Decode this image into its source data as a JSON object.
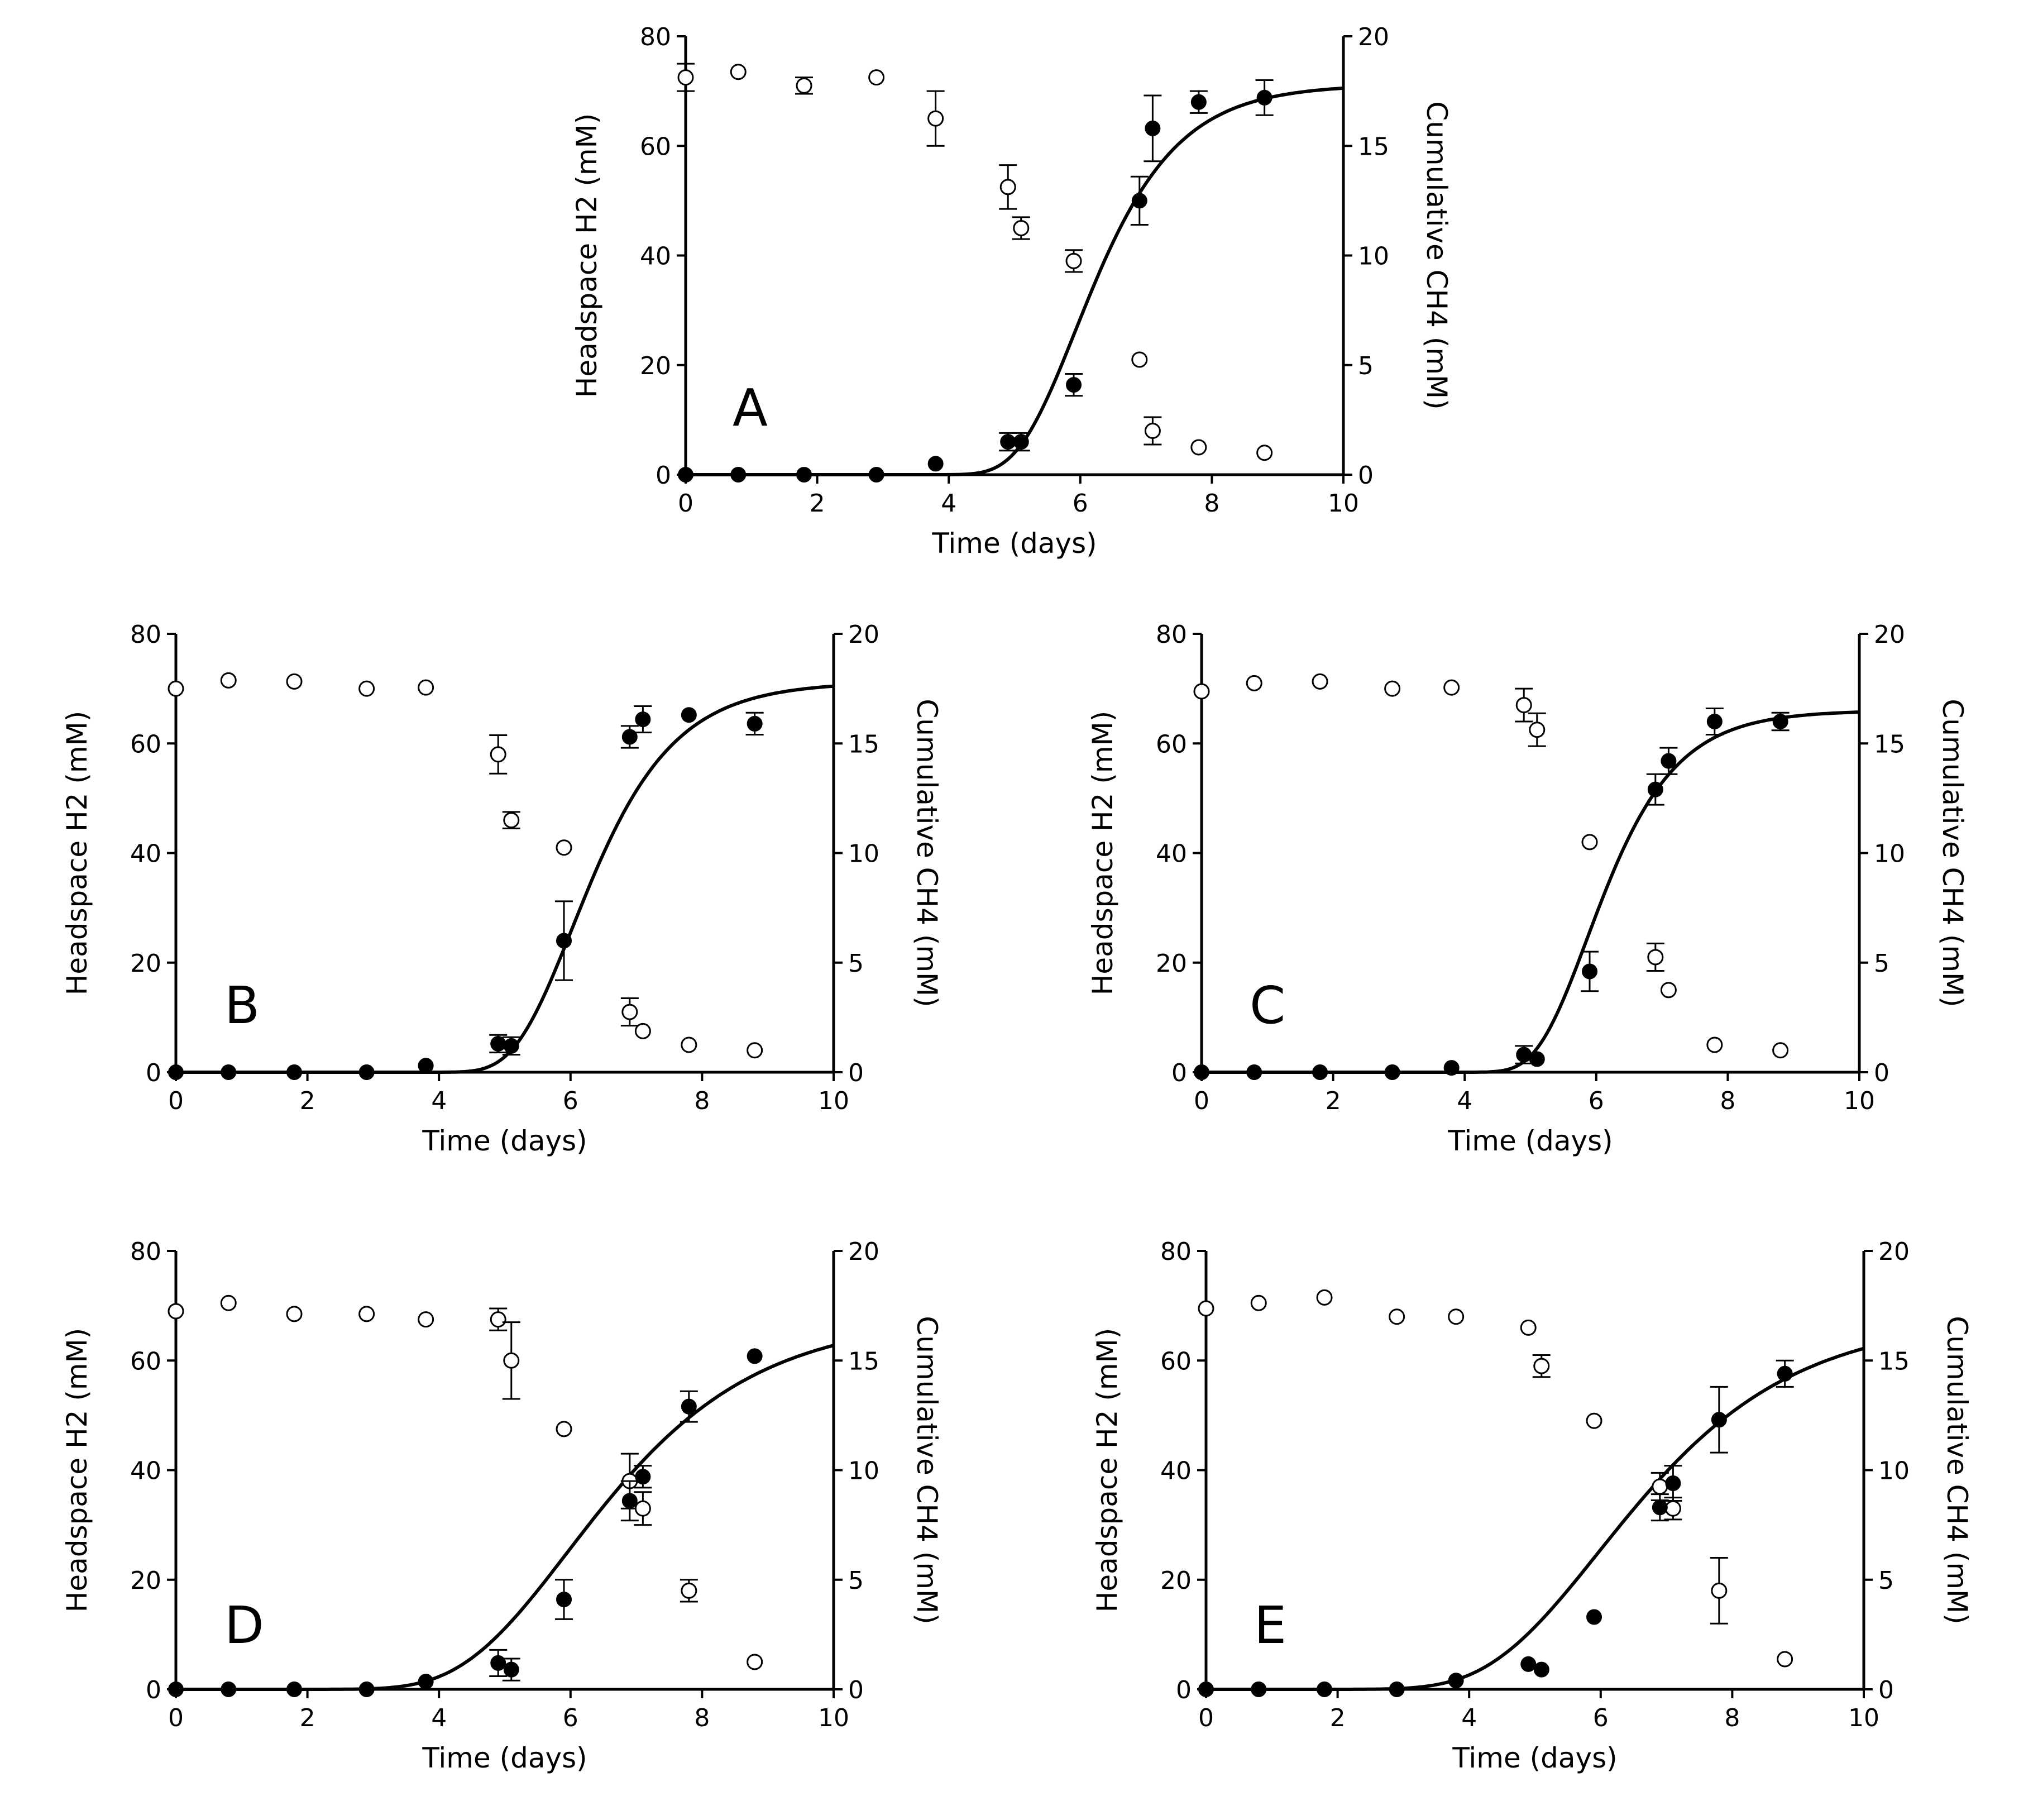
{
  "chart_data": [
    {
      "type": "scatter",
      "panel": "A",
      "xlabel": "Time (days)",
      "ylabel_left": "Headspace H2 (mM)",
      "ylabel_right": "Cumulative CH4 (mM)",
      "x_ticks": [
        "0",
        "2",
        "4",
        "6",
        "8",
        "10"
      ],
      "y_left_ticks": [
        "0",
        "20",
        "40",
        "60",
        "80"
      ],
      "y_right_ticks": [
        "0",
        "5",
        "10",
        "15",
        "20"
      ],
      "xlim": [
        0,
        10
      ],
      "ylim_left": [
        0,
        80
      ],
      "ylim_right": [
        0,
        20
      ],
      "series": [
        {
          "name": "Headspace H2",
          "marker": "open-circle",
          "axis": "left",
          "x": [
            0,
            0.8,
            1.8,
            2.9,
            3.8,
            4.9,
            5.1,
            5.9,
            6.9,
            7.1,
            7.8,
            8.8
          ],
          "y": [
            72.5,
            73.5,
            71,
            72.5,
            65,
            52.5,
            45,
            39,
            21,
            8,
            5,
            4
          ],
          "err": [
            2.5,
            0,
            1.5,
            0,
            5,
            4,
            2,
            2,
            0,
            2.5,
            0,
            0
          ]
        },
        {
          "name": "Cumulative CH4",
          "marker": "filled-circle",
          "axis": "right",
          "x": [
            0,
            0.8,
            1.8,
            2.9,
            3.8,
            4.9,
            5.1,
            5.9,
            6.9,
            7.1,
            7.8,
            8.8
          ],
          "y": [
            0,
            0,
            0,
            0,
            0.5,
            1.5,
            1.5,
            4.1,
            12.5,
            15.8,
            17,
            17.2
          ],
          "err": [
            0,
            0,
            0,
            0,
            0,
            0.4,
            0.4,
            0.5,
            1.1,
            1.5,
            0.5,
            0.8
          ]
        }
      ],
      "fit": {
        "name": "Model fit (CH4)",
        "axis": "right",
        "A": 17.8,
        "mu": 7.5,
        "lambda": 5.05
      }
    },
    {
      "type": "scatter",
      "panel": "B",
      "xlabel": "Time (days)",
      "ylabel_left": "Headspace H2 (mM)",
      "ylabel_right": "Cumulative CH4 (mM)",
      "x_ticks": [
        "0",
        "2",
        "4",
        "6",
        "8",
        "10"
      ],
      "y_left_ticks": [
        "0",
        "20",
        "40",
        "60",
        "80"
      ],
      "y_right_ticks": [
        "0",
        "5",
        "10",
        "15",
        "20"
      ],
      "xlim": [
        0,
        10
      ],
      "ylim_left": [
        0,
        80
      ],
      "ylim_right": [
        0,
        20
      ],
      "series": [
        {
          "name": "Headspace H2",
          "marker": "open-circle",
          "axis": "left",
          "x": [
            0,
            0.8,
            1.8,
            2.9,
            3.8,
            4.9,
            5.1,
            5.9,
            6.9,
            7.1,
            7.8,
            8.8
          ],
          "y": [
            70,
            71.5,
            71.3,
            70,
            70.2,
            58,
            46,
            41,
            11,
            7.5,
            5,
            4
          ],
          "err": [
            0,
            0,
            0,
            0,
            0,
            3.5,
            1.5,
            0,
            2.5,
            0,
            0,
            0
          ]
        },
        {
          "name": "Cumulative CH4",
          "marker": "filled-circle",
          "axis": "right",
          "x": [
            0,
            0.8,
            1.8,
            2.9,
            3.8,
            4.9,
            5.1,
            5.9,
            6.9,
            7.1,
            7.8,
            8.8
          ],
          "y": [
            0,
            0,
            0,
            0,
            0.3,
            1.3,
            1.2,
            6,
            15.3,
            16.1,
            16.3,
            15.9
          ],
          "err": [
            0,
            0,
            0,
            0,
            0,
            0.4,
            0.4,
            1.8,
            0.5,
            0.6,
            0,
            0.5
          ]
        }
      ],
      "fit": {
        "name": "Model fit (CH4)",
        "axis": "right",
        "A": 17.8,
        "mu": 7.5,
        "lambda": 5.15
      }
    },
    {
      "type": "scatter",
      "panel": "C",
      "xlabel": "Time (days)",
      "ylabel_left": "Headspace H2 (mM)",
      "ylabel_right": "Cumulative CH4 (mM)",
      "x_ticks": [
        "0",
        "2",
        "4",
        "6",
        "8",
        "10"
      ],
      "y_left_ticks": [
        "0",
        "20",
        "40",
        "60",
        "80"
      ],
      "y_right_ticks": [
        "0",
        "5",
        "10",
        "15",
        "20"
      ],
      "xlim": [
        0,
        10
      ],
      "ylim_left": [
        0,
        80
      ],
      "ylim_right": [
        0,
        20
      ],
      "series": [
        {
          "name": "Headspace H2",
          "marker": "open-circle",
          "axis": "left",
          "x": [
            0,
            0.8,
            1.8,
            2.9,
            3.8,
            4.9,
            5.1,
            5.9,
            6.9,
            7.1,
            7.8,
            8.8
          ],
          "y": [
            69.5,
            71,
            71.3,
            70,
            70.2,
            67,
            62.5,
            42,
            21,
            15,
            5,
            4
          ],
          "err": [
            0,
            0,
            0,
            0,
            0,
            3,
            3,
            0,
            2.5,
            0,
            0,
            0
          ]
        },
        {
          "name": "Cumulative CH4",
          "marker": "filled-circle",
          "axis": "right",
          "x": [
            0,
            0.8,
            1.8,
            2.9,
            3.8,
            4.9,
            5.1,
            5.9,
            6.9,
            7.1,
            7.8,
            8.8
          ],
          "y": [
            0,
            0,
            0,
            0,
            0.2,
            0.8,
            0.6,
            4.6,
            12.9,
            14.2,
            16,
            16
          ],
          "err": [
            0,
            0,
            0,
            0,
            0,
            0.4,
            0,
            0.9,
            0.7,
            0.6,
            0.6,
            0.4
          ]
        }
      ],
      "fit": {
        "name": "Model fit (CH4)",
        "axis": "right",
        "A": 16.5,
        "mu": 8.0,
        "lambda": 5.1
      }
    },
    {
      "type": "scatter",
      "panel": "D",
      "xlabel": "Time (days)",
      "ylabel_left": "Headspace H2 (mM)",
      "ylabel_right": "Cumulative CH4 (mM)",
      "x_ticks": [
        "0",
        "2",
        "4",
        "6",
        "8",
        "10"
      ],
      "y_left_ticks": [
        "0",
        "20",
        "40",
        "60",
        "80"
      ],
      "y_right_ticks": [
        "0",
        "5",
        "10",
        "15",
        "20"
      ],
      "xlim": [
        0,
        10
      ],
      "ylim_left": [
        0,
        80
      ],
      "ylim_right": [
        0,
        20
      ],
      "series": [
        {
          "name": "Headspace H2",
          "marker": "open-circle",
          "axis": "left",
          "x": [
            0,
            0.8,
            1.8,
            2.9,
            3.8,
            4.9,
            5.1,
            5.9,
            6.9,
            7.1,
            7.8,
            8.8
          ],
          "y": [
            69,
            70.5,
            68.5,
            68.5,
            67.5,
            67.5,
            60,
            47.5,
            38,
            33,
            18,
            5
          ],
          "err": [
            0,
            0,
            0,
            0,
            0,
            2,
            7,
            0,
            5,
            3,
            2,
            0
          ]
        },
        {
          "name": "Cumulative CH4",
          "marker": "filled-circle",
          "axis": "right",
          "x": [
            0,
            0.8,
            1.8,
            2.9,
            3.8,
            4.9,
            5.1,
            5.9,
            6.9,
            7.1,
            7.8,
            8.8
          ],
          "y": [
            0,
            0,
            0,
            0,
            0.35,
            1.2,
            0.9,
            4.1,
            8.6,
            9.7,
            12.9,
            15.2
          ],
          "err": [
            0,
            0,
            0,
            0,
            0,
            0.6,
            0.5,
            0.9,
            0.9,
            0.5,
            0.7,
            0
          ]
        }
      ],
      "fit": {
        "name": "Model fit (CH4)",
        "axis": "right",
        "A": 17.0,
        "mu": 3.9,
        "lambda": 4.35
      }
    },
    {
      "type": "scatter",
      "panel": "E",
      "xlabel": "Time (days)",
      "ylabel_left": "Headspace H2 (mM)",
      "ylabel_right": "Cumulative CH4 (mM)",
      "x_ticks": [
        "0",
        "2",
        "4",
        "6",
        "8",
        "10"
      ],
      "y_left_ticks": [
        "0",
        "20",
        "40",
        "60",
        "80"
      ],
      "y_right_ticks": [
        "0",
        "5",
        "10",
        "15",
        "20"
      ],
      "xlim": [
        0,
        10
      ],
      "ylim_left": [
        0,
        80
      ],
      "ylim_right": [
        0,
        20
      ],
      "series": [
        {
          "name": "Headspace H2",
          "marker": "open-circle",
          "axis": "left",
          "x": [
            0,
            0.8,
            1.8,
            2.9,
            3.8,
            4.9,
            5.1,
            5.9,
            6.9,
            7.1,
            7.8,
            8.8
          ],
          "y": [
            69.5,
            70.5,
            71.5,
            68,
            68,
            66,
            59,
            49,
            37,
            33,
            18,
            5.5
          ],
          "err": [
            0,
            0,
            0,
            0,
            0,
            0,
            2,
            0,
            2.5,
            2,
            6,
            0
          ]
        },
        {
          "name": "Cumulative CH4",
          "marker": "filled-circle",
          "axis": "right",
          "x": [
            0,
            0.8,
            1.8,
            2.9,
            3.8,
            4.9,
            5.1,
            5.9,
            6.9,
            7.1,
            7.8,
            8.8
          ],
          "y": [
            0,
            0,
            0,
            0,
            0.4,
            1.15,
            0.9,
            3.3,
            8.3,
            9.4,
            12.3,
            14.4
          ],
          "err": [
            0,
            0,
            0,
            0,
            0,
            0,
            0,
            0,
            0.6,
            0.8,
            1.5,
            0.6
          ]
        }
      ],
      "fit": {
        "name": "Model fit (CH4)",
        "axis": "right",
        "A": 17.0,
        "mu": 3.75,
        "lambda": 4.3
      }
    }
  ]
}
